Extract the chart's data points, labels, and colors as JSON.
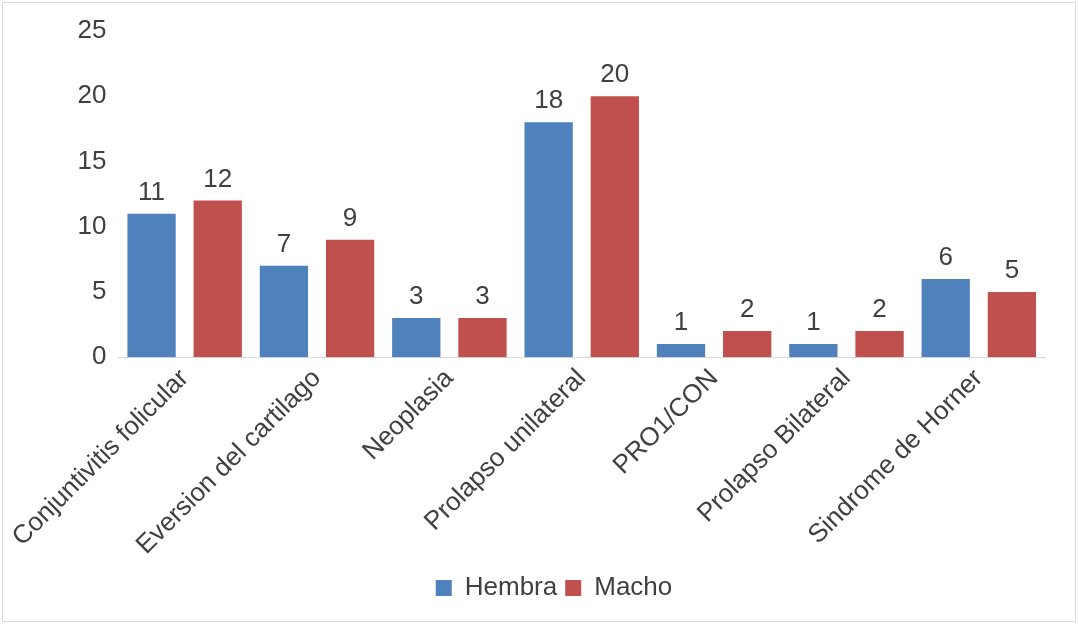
{
  "chart_data": {
    "type": "bar",
    "categories": [
      "Conjuntivitis folicular",
      "Eversion del cartilago",
      "Neoplasia",
      "Prolapso unilateral",
      "PRO1/CON",
      "Prolapso Bilateral",
      "Sindrome de Horner"
    ],
    "series": [
      {
        "name": "Hembra",
        "color": "#4f81bd",
        "values": [
          11,
          7,
          3,
          18,
          1,
          1,
          6
        ]
      },
      {
        "name": "Macho",
        "color": "#c0504d",
        "values": [
          12,
          9,
          3,
          20,
          2,
          2,
          5
        ]
      }
    ],
    "ylim": [
      0,
      25
    ],
    "yticks": [
      0,
      5,
      10,
      15,
      20,
      25
    ],
    "grid": false,
    "legend": "bottom",
    "data_labels": true
  }
}
